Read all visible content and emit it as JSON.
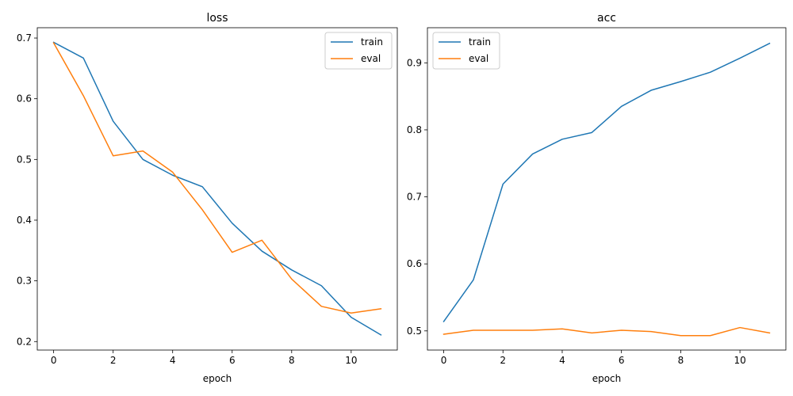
{
  "chart_data": [
    {
      "type": "line",
      "title": "loss",
      "xlabel": "epoch",
      "ylabel": "",
      "x": [
        0,
        1,
        2,
        3,
        4,
        5,
        6,
        7,
        8,
        9,
        10,
        11
      ],
      "xlim": [
        -0.55,
        11.55
      ],
      "ylim": [
        0.186,
        0.717
      ],
      "xticks": [
        0,
        2,
        4,
        6,
        8,
        10
      ],
      "yticks": [
        0.2,
        0.3,
        0.4,
        0.5,
        0.6,
        0.7
      ],
      "ytick_labels": [
        "0.2",
        "0.3",
        "0.4",
        "0.5",
        "0.6",
        "0.7"
      ],
      "legend": "top-right",
      "series": [
        {
          "name": "train",
          "color": "#1f77b4",
          "values": [
            0.693,
            0.667,
            0.563,
            0.5,
            0.474,
            0.455,
            0.395,
            0.349,
            0.318,
            0.292,
            0.24,
            0.211
          ]
        },
        {
          "name": "eval",
          "color": "#ff7f0e",
          "values": [
            0.692,
            0.605,
            0.506,
            0.514,
            0.479,
            0.417,
            0.347,
            0.367,
            0.303,
            0.258,
            0.247,
            0.254
          ]
        }
      ]
    },
    {
      "type": "line",
      "title": "acc",
      "xlabel": "epoch",
      "ylabel": "",
      "x": [
        0,
        1,
        2,
        3,
        4,
        5,
        6,
        7,
        8,
        9,
        10,
        11
      ],
      "xlim": [
        -0.55,
        11.55
      ],
      "ylim": [
        0.4714,
        0.9524
      ],
      "xticks": [
        0,
        2,
        4,
        6,
        8,
        10
      ],
      "yticks": [
        0.5,
        0.6,
        0.7,
        0.8,
        0.9
      ],
      "ytick_labels": [
        "0.5",
        "0.6",
        "0.7",
        "0.8",
        "0.9"
      ],
      "legend": "top-left",
      "series": [
        {
          "name": "train",
          "color": "#1f77b4",
          "values": [
            0.514,
            0.576,
            0.719,
            0.764,
            0.786,
            0.796,
            0.835,
            0.859,
            0.872,
            0.886,
            0.907,
            0.929
          ]
        },
        {
          "name": "eval",
          "color": "#ff7f0e",
          "values": [
            0.495,
            0.501,
            0.501,
            0.501,
            0.503,
            0.497,
            0.501,
            0.499,
            0.493,
            0.493,
            0.505,
            0.497
          ]
        }
      ]
    }
  ]
}
